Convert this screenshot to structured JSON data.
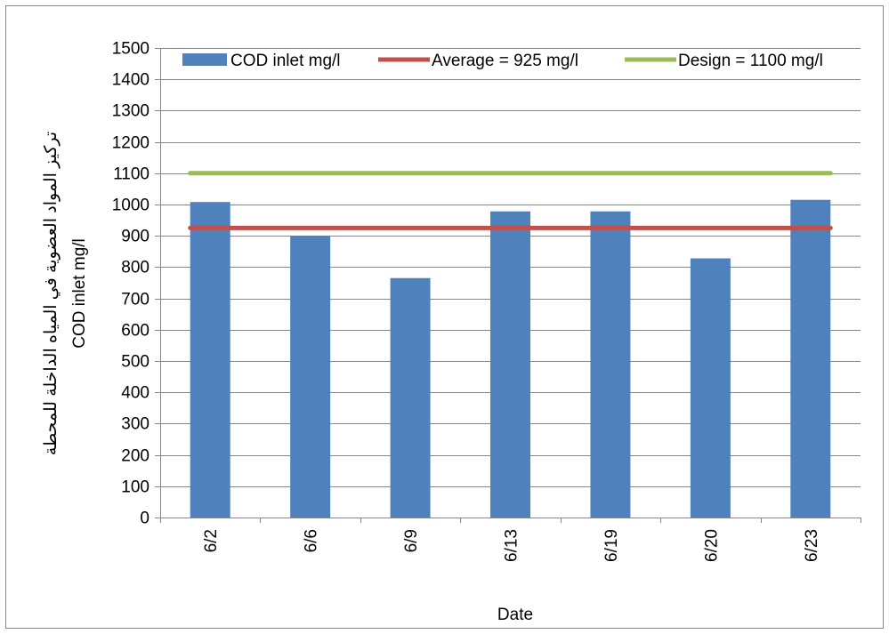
{
  "chart_data": {
    "type": "bar",
    "categories": [
      "6/2",
      "6/6",
      "6/9",
      "6/13",
      "6/19",
      "6/20",
      "6/23"
    ],
    "series": [
      {
        "name": "COD inlet mg/l",
        "type": "bar",
        "color": "#4F81BD",
        "values": [
          1008,
          900,
          765,
          978,
          978,
          828,
          1015
        ]
      },
      {
        "name": "Average = 925 mg/l",
        "type": "line",
        "color": "#C0504D",
        "values": [
          925,
          925,
          925,
          925,
          925,
          925,
          925
        ]
      },
      {
        "name": "Design = 1100 mg/l",
        "type": "line",
        "color": "#9BBB59",
        "values": [
          1100,
          1100,
          1100,
          1100,
          1100,
          1100,
          1100
        ]
      }
    ],
    "xlabel": "Date",
    "ylabel_lines": [
      "تركيز المواد العضوية في المياه الداخلة للمحطة",
      "COD inlet mg/l"
    ],
    "ylim": [
      0,
      1500
    ],
    "yticks": [
      0,
      100,
      200,
      300,
      400,
      500,
      600,
      700,
      800,
      900,
      1000,
      1100,
      1200,
      1300,
      1400,
      1500
    ],
    "grid": true,
    "legend_position": "top"
  }
}
